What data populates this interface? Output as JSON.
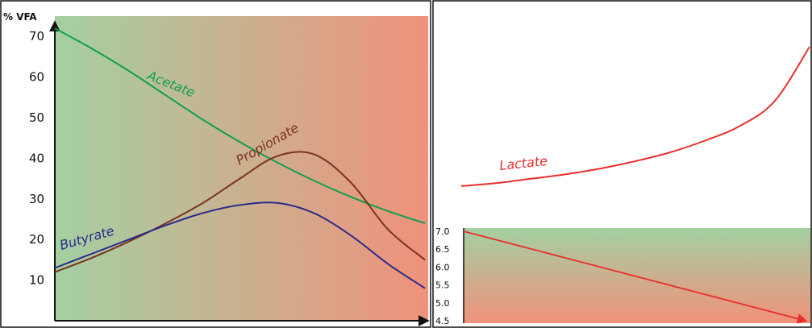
{
  "chart_data": [
    {
      "type": "line",
      "ylabel": "% VFA",
      "xlabel": "",
      "ylim": [
        0,
        75
      ],
      "y_ticks": [
        "70",
        "60",
        "50",
        "40",
        "30",
        "20",
        "10"
      ],
      "x": [
        0,
        10,
        20,
        30,
        40,
        50,
        60,
        70,
        80,
        90,
        100
      ],
      "background_gradient": [
        "#a4d0a2",
        "#f0917b"
      ],
      "grid": false,
      "series": [
        {
          "name": "Acetate",
          "color": "#10a050",
          "values": [
            72,
            67,
            61.5,
            55.5,
            49.5,
            44,
            39,
            34.5,
            30.5,
            27,
            24
          ]
        },
        {
          "name": "Propionate",
          "color": "#7a3320",
          "values": [
            12,
            15.5,
            19.5,
            24,
            29,
            35,
            40.5,
            41,
            34,
            22.5,
            15
          ]
        },
        {
          "name": "Butyrate",
          "color": "#2d2a8c",
          "values": [
            13,
            16.5,
            20,
            23.5,
            26.5,
            28.5,
            29,
            26.5,
            21,
            14,
            8
          ]
        }
      ]
    },
    {
      "type": "line",
      "ylabel": "",
      "x": [
        0,
        10,
        20,
        30,
        40,
        50,
        60,
        70,
        80,
        90,
        100
      ],
      "series": [
        {
          "name": "Lactate",
          "color": "#e8302a",
          "values": [
            0.05,
            0.07,
            0.1,
            0.13,
            0.17,
            0.22,
            0.28,
            0.36,
            0.46,
            0.63,
            1.0
          ]
        }
      ]
    },
    {
      "type": "line",
      "ylabel": "",
      "ylim": [
        4.5,
        7.0
      ],
      "y_ticks": [
        "7.0",
        "6.5",
        "6.0",
        "5.5",
        "5.0",
        "4.5"
      ],
      "background_gradient": [
        "#a4d0a2",
        "#f0917b"
      ],
      "x": [
        0,
        100
      ],
      "series": [
        {
          "name": "",
          "color": "#e8302a",
          "values": [
            7.0,
            4.5
          ]
        }
      ]
    }
  ]
}
